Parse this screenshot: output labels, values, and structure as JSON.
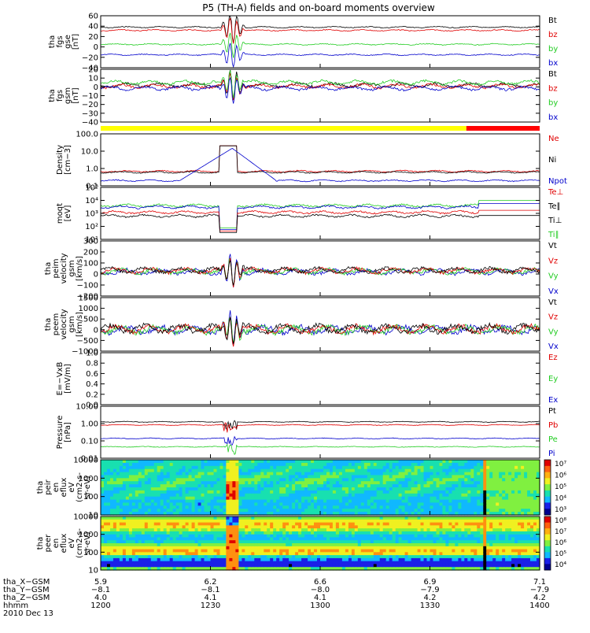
{
  "title": "P5 (TH-A) fields and on-board moments overview",
  "date_label": "2010 Dec 13",
  "colors": {
    "black": "#000000",
    "red": "#e00000",
    "green": "#22cc22",
    "blue": "#0000cc",
    "yellow": "#ffff00",
    "bar_red": "#ff0000"
  },
  "panels": [
    {
      "key": "fgs_gse",
      "ylabel": [
        "tha",
        "fgs",
        "gse",
        "[nT]"
      ],
      "ticks": [
        "60",
        "40",
        "20",
        "0",
        "−20",
        "−40"
      ],
      "legend": [
        {
          "text": "Bt",
          "color": "black"
        },
        {
          "text": "bz",
          "color": "red"
        },
        {
          "text": "by",
          "color": "green"
        },
        {
          "text": "bx",
          "color": "blue"
        }
      ]
    },
    {
      "key": "fgs_gsm",
      "ylabel": [
        "tha",
        "fgs",
        "gsm",
        "[nT]"
      ],
      "ticks": [
        "20",
        "10",
        "0",
        "−10",
        "−20",
        "−30",
        "−40"
      ],
      "legend": [
        {
          "text": "Bt",
          "color": "black"
        },
        {
          "text": "bz",
          "color": "red"
        },
        {
          "text": "by",
          "color": "green"
        },
        {
          "text": "bx",
          "color": "blue"
        }
      ]
    },
    {
      "key": "density",
      "ylabel": [
        "Density",
        "[cm−3]"
      ],
      "ticks": [
        "100.0",
        "10.0",
        "1.0",
        "0.1"
      ],
      "legend": [
        {
          "text": "Ne",
          "color": "red"
        },
        {
          "text": "Ni",
          "color": "black"
        },
        {
          "text": "Npot",
          "color": "blue"
        }
      ]
    },
    {
      "key": "temperature",
      "ylabel": [
        "moqt",
        "[eV]"
      ],
      "ticks": [
        "10⁵",
        "10⁴",
        "10³",
        "10²",
        "10¹"
      ],
      "legend": [
        {
          "text": "Te⊥",
          "color": "red"
        },
        {
          "text": "Te∥",
          "color": "black"
        },
        {
          "text": "Ti⊥",
          "color": "black"
        },
        {
          "text": "Ti∥",
          "color": "green"
        }
      ]
    },
    {
      "key": "peim_velocity",
      "ylabel": [
        "tha",
        "peim",
        "velocity",
        "gsm",
        "[km/s]"
      ],
      "ticks": [
        "300",
        "200",
        "100",
        "0",
        "−100",
        "−200"
      ],
      "legend": [
        {
          "text": "Vt",
          "color": "black"
        },
        {
          "text": "Vz",
          "color": "red"
        },
        {
          "text": "Vy",
          "color": "green"
        },
        {
          "text": "Vx",
          "color": "blue"
        }
      ]
    },
    {
      "key": "peem_velocity",
      "ylabel": [
        "tha",
        "peem",
        "velocity",
        "gsm",
        "[km/s]"
      ],
      "ticks": [
        "1500",
        "1000",
        "500",
        "0",
        "−500",
        "−1000"
      ],
      "legend": [
        {
          "text": "Vt",
          "color": "black"
        },
        {
          "text": "Vz",
          "color": "red"
        },
        {
          "text": "Vy",
          "color": "green"
        },
        {
          "text": "Vx",
          "color": "blue"
        }
      ]
    },
    {
      "key": "efield",
      "ylabel": [
        "E=−VxB",
        "[mV/m]"
      ],
      "ticks": [
        "1.0",
        "0.8",
        "0.6",
        "0.4",
        "0.2",
        "0.0"
      ],
      "legend": [
        {
          "text": "Ez",
          "color": "red"
        },
        {
          "text": "Ey",
          "color": "green"
        },
        {
          "text": "Ex",
          "color": "blue"
        }
      ]
    },
    {
      "key": "pressure",
      "ylabel": [
        "Pressure",
        "[nPa]"
      ],
      "ticks": [
        "10.00",
        "1.00",
        "0.10",
        "0.01"
      ],
      "legend": [
        {
          "text": "Pt",
          "color": "black"
        },
        {
          "text": "Pb",
          "color": "red"
        },
        {
          "text": "Pe",
          "color": "green"
        },
        {
          "text": "Pi",
          "color": "blue"
        }
      ]
    },
    {
      "key": "peir_spec",
      "ylabel": [
        "tha",
        "peir",
        "en",
        "eflux",
        "eV",
        "(cm2-s-",
        "sr-eV)"
      ],
      "ticks": [
        "10000",
        "1000",
        "100",
        "10"
      ],
      "colorbar": [
        "10⁷",
        "10⁶",
        "10⁵",
        "10⁴",
        "10³"
      ]
    },
    {
      "key": "peer_spec",
      "ylabel": [
        "tha",
        "peer",
        "en",
        "eflux",
        "eV",
        "(cm2-s-",
        "sr-eV)"
      ],
      "ticks": [
        "10000",
        "1000",
        "100",
        "10"
      ],
      "colorbar": [
        "10⁸",
        "10⁷",
        "10⁶",
        "10⁵",
        "10⁴"
      ]
    }
  ],
  "x_axis": {
    "row_labels": [
      "tha_X−GSM",
      "tha_Y−GSM",
      "tha_Z−GSM",
      "hhmm"
    ],
    "ticks": [
      {
        "x_gsm": "5.9",
        "y_gsm": "−8.1",
        "z_gsm": "4.0",
        "hhmm": "1200"
      },
      {
        "x_gsm": "6.2",
        "y_gsm": "−8.1",
        "z_gsm": "4.1",
        "hhmm": "1230"
      },
      {
        "x_gsm": "6.6",
        "y_gsm": "−8.0",
        "z_gsm": "4.1",
        "hhmm": "1300"
      },
      {
        "x_gsm": "6.9",
        "y_gsm": "−7.9",
        "z_gsm": "4.2",
        "hhmm": "1330"
      },
      {
        "x_gsm": "7.1",
        "y_gsm": "−7.9",
        "z_gsm": "4.2",
        "hhmm": "1400"
      }
    ]
  },
  "chart_data": {
    "type": "line",
    "title": "P5 (TH-A) fields and on-board moments overview",
    "x_unit": "UT hhmm",
    "x_range": [
      "1200",
      "1400"
    ],
    "mode_bar": [
      {
        "from": "1200",
        "to": "1345",
        "color": "yellow"
      },
      {
        "from": "1345",
        "to": "1400",
        "color": "red"
      }
    ],
    "series_samples": {
      "Bt_gse_nT": {
        "x": [
          "1200",
          "1225",
          "1232",
          "1300",
          "1345",
          "1400"
        ],
        "y": [
          38,
          40,
          52,
          34,
          36,
          38
        ]
      },
      "Ne_cm3": {
        "x": [
          "1200",
          "1230",
          "1232",
          "1300",
          "1400"
        ],
        "y": [
          0.8,
          12,
          15,
          0.8,
          0.7
        ]
      },
      "Te_eV": {
        "x": [
          "1200",
          "1232",
          "1300",
          "1345",
          "1400"
        ],
        "y": [
          3000,
          200,
          3000,
          3000,
          8000
        ]
      },
      "Pt_nPa": {
        "x": [
          "1200",
          "1232",
          "1300",
          "1400"
        ],
        "y": [
          0.9,
          0.6,
          0.85,
          0.9
        ]
      }
    }
  }
}
